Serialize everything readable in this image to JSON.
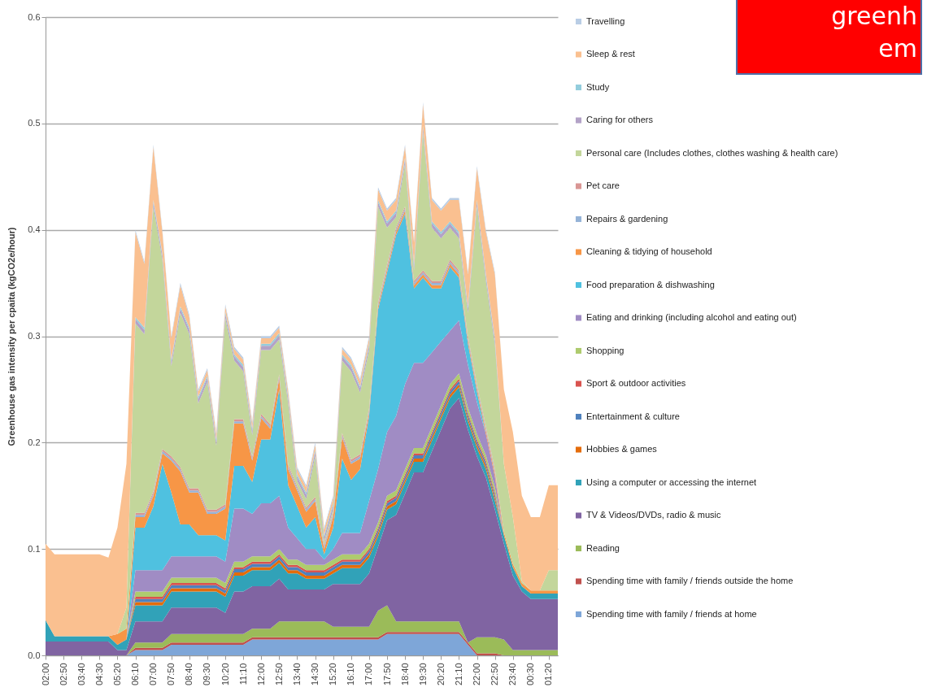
{
  "chart_data": {
    "type": "area",
    "stacked": true,
    "ylabel": "Greenhouse gas intensity per cpaita (kgCO2e/hour)",
    "annotations": [
      "greenh",
      "em"
    ],
    "categories": [
      "02:00",
      null,
      "02:50",
      null,
      "03:40",
      null,
      "04:30",
      null,
      "05:20",
      null,
      "06:10",
      null,
      "07:00",
      null,
      "07:50",
      null,
      "08:40",
      null,
      "09:30",
      null,
      "10:20",
      null,
      "11:10",
      null,
      "12:00",
      null,
      "12:50",
      null,
      "13:40",
      null,
      "14:30",
      null,
      "15:20",
      null,
      "16:10",
      null,
      "17:00",
      null,
      "17:50",
      null,
      "18:40",
      null,
      "19:30",
      null,
      "20:20",
      null,
      "21:10",
      null,
      "22:00",
      null,
      "22:50",
      null,
      "23:40",
      null,
      "00:30",
      null,
      "01:20",
      null
    ],
    "ylim": [
      0,
      0.6
    ],
    "yticks": [
      {
        "value": 0,
        "label": "0.0"
      },
      0.1,
      0.2,
      0.3,
      0.4,
      0.5,
      0.6
    ],
    "grid": "y",
    "legend": "right",
    "series": [
      {
        "name": "Spending time with family / friends at home",
        "color": "#7ea6d8",
        "values": [
          0,
          0,
          0,
          0,
          0,
          0,
          0,
          0,
          0,
          0,
          0.005,
          0.005,
          0.005,
          0.005,
          0.01,
          0.01,
          0.01,
          0.01,
          0.01,
          0.01,
          0.01,
          0.01,
          0.01,
          0.015,
          0.015,
          0.015,
          0.015,
          0.015,
          0.015,
          0.015,
          0.015,
          0.015,
          0.015,
          0.015,
          0.015,
          0.015,
          0.015,
          0.015,
          0.02,
          0.02,
          0.02,
          0.02,
          0.02,
          0.02,
          0.02,
          0.02,
          0.02,
          0.01,
          0,
          0,
          0,
          0,
          0,
          0,
          0,
          0,
          0,
          0
        ]
      },
      {
        "name": "Spending time with family / friends outside the home",
        "color": "#c0504d",
        "values": [
          0,
          0,
          0,
          0,
          0,
          0,
          0,
          0,
          0,
          0,
          0.002,
          0.002,
          0.002,
          0.002,
          0.002,
          0.002,
          0.002,
          0.002,
          0.002,
          0.002,
          0.002,
          0.002,
          0.002,
          0.002,
          0.002,
          0.002,
          0.002,
          0.002,
          0.002,
          0.002,
          0.002,
          0.002,
          0.002,
          0.002,
          0.002,
          0.002,
          0.002,
          0.002,
          0.002,
          0.002,
          0.002,
          0.002,
          0.002,
          0.002,
          0.002,
          0.002,
          0.002,
          0.002,
          0.002,
          0.002,
          0.002,
          0,
          0,
          0,
          0,
          0,
          0,
          0
        ]
      },
      {
        "name": "Reading",
        "color": "#9bbb59",
        "values": [
          0,
          0,
          0,
          0,
          0,
          0,
          0,
          0,
          0,
          0,
          0.005,
          0.005,
          0.005,
          0.005,
          0.008,
          0.008,
          0.008,
          0.008,
          0.008,
          0.008,
          0.008,
          0.008,
          0.008,
          0.008,
          0.008,
          0.008,
          0.015,
          0.015,
          0.015,
          0.015,
          0.015,
          0.015,
          0.01,
          0.01,
          0.01,
          0.01,
          0.01,
          0.025,
          0.025,
          0.01,
          0.01,
          0.01,
          0.01,
          0.01,
          0.01,
          0.01,
          0.01,
          0,
          0.015,
          0.015,
          0.015,
          0.015,
          0.005,
          0.005,
          0.005,
          0.005,
          0.005,
          0.005
        ]
      },
      {
        "name": "TV & Videos/DVDs, radio & music",
        "color": "#8064a2",
        "values": [
          0.013,
          0.013,
          0.013,
          0.013,
          0.013,
          0.013,
          0.013,
          0.013,
          0.005,
          0.005,
          0.02,
          0.02,
          0.02,
          0.02,
          0.025,
          0.025,
          0.025,
          0.025,
          0.025,
          0.025,
          0.02,
          0.04,
          0.04,
          0.04,
          0.04,
          0.04,
          0.04,
          0.03,
          0.03,
          0.03,
          0.03,
          0.03,
          0.04,
          0.04,
          0.04,
          0.04,
          0.05,
          0.06,
          0.08,
          0.1,
          0.12,
          0.14,
          0.14,
          0.16,
          0.18,
          0.2,
          0.21,
          0.2,
          0.17,
          0.15,
          0.12,
          0.09,
          0.07,
          0.055,
          0.048,
          0.048,
          0.048,
          0.048
        ]
      },
      {
        "name": "Using a computer or accessing the internet",
        "color": "#31a2b8",
        "values": [
          0.02,
          0.005,
          0.005,
          0.005,
          0.005,
          0.005,
          0.005,
          0.005,
          0.005,
          0.01,
          0.015,
          0.015,
          0.015,
          0.015,
          0.015,
          0.015,
          0.015,
          0.015,
          0.015,
          0.015,
          0.015,
          0.015,
          0.015,
          0.015,
          0.015,
          0.015,
          0.015,
          0.015,
          0.015,
          0.01,
          0.01,
          0.01,
          0.01,
          0.015,
          0.015,
          0.015,
          0.015,
          0.01,
          0.01,
          0.01,
          0.01,
          0.01,
          0.01,
          0.01,
          0.01,
          0.01,
          0.01,
          0.008,
          0.008,
          0.008,
          0.008,
          0.008,
          0.008,
          0.005,
          0.005,
          0.005,
          0.005,
          0.005
        ]
      },
      {
        "name": "Hobbies & games",
        "color": "#e46c0a",
        "values": [
          0,
          0,
          0,
          0,
          0,
          0,
          0,
          0,
          0,
          0,
          0.003,
          0.003,
          0.003,
          0.003,
          0.003,
          0.003,
          0.003,
          0.003,
          0.003,
          0.003,
          0.003,
          0.003,
          0.003,
          0.003,
          0.003,
          0.003,
          0.003,
          0.003,
          0.003,
          0.003,
          0.003,
          0.003,
          0.003,
          0.003,
          0.003,
          0.003,
          0.003,
          0.003,
          0.003,
          0.003,
          0.003,
          0.003,
          0.003,
          0.003,
          0.003,
          0.003,
          0.003,
          0.003,
          0.003,
          0.003,
          0.003,
          0,
          0,
          0,
          0,
          0,
          0,
          0
        ]
      },
      {
        "name": "Entertainment & culture",
        "color": "#4f81bd",
        "values": [
          0,
          0,
          0,
          0,
          0,
          0,
          0,
          0,
          0,
          0,
          0.003,
          0.003,
          0.003,
          0.003,
          0.003,
          0.003,
          0.003,
          0.003,
          0.003,
          0.003,
          0.003,
          0.003,
          0.003,
          0.003,
          0.003,
          0.003,
          0.003,
          0.003,
          0.003,
          0.003,
          0.003,
          0.003,
          0.003,
          0.003,
          0.003,
          0.003,
          0.003,
          0.003,
          0.003,
          0.003,
          0.003,
          0.003,
          0.003,
          0.003,
          0.003,
          0.003,
          0.003,
          0.003,
          0.003,
          0.003,
          0.003,
          0,
          0,
          0,
          0,
          0,
          0,
          0
        ]
      },
      {
        "name": "Sport & outdoor activities",
        "color": "#d9534f",
        "values": [
          0,
          0,
          0,
          0,
          0,
          0,
          0,
          0,
          0,
          0,
          0.002,
          0.002,
          0.002,
          0.002,
          0.002,
          0.002,
          0.002,
          0.002,
          0.002,
          0.002,
          0.002,
          0.002,
          0.002,
          0.002,
          0.002,
          0.002,
          0.002,
          0.002,
          0.002,
          0.002,
          0.002,
          0.002,
          0.002,
          0.002,
          0.002,
          0.002,
          0.002,
          0.002,
          0.002,
          0.002,
          0.002,
          0.002,
          0.002,
          0.002,
          0.002,
          0.002,
          0.002,
          0.002,
          0.002,
          0.002,
          0.002,
          0,
          0,
          0,
          0,
          0,
          0,
          0
        ]
      },
      {
        "name": "Shopping",
        "color": "#aecb6e",
        "values": [
          0,
          0,
          0,
          0,
          0,
          0,
          0,
          0,
          0,
          0,
          0.005,
          0.005,
          0.005,
          0.005,
          0.005,
          0.005,
          0.005,
          0.005,
          0.005,
          0.005,
          0.005,
          0.005,
          0.005,
          0.005,
          0.005,
          0.005,
          0.005,
          0.005,
          0.005,
          0.005,
          0.005,
          0.005,
          0.005,
          0.005,
          0.005,
          0.005,
          0.005,
          0.005,
          0.005,
          0.005,
          0.005,
          0.005,
          0.005,
          0.005,
          0.005,
          0.005,
          0.005,
          0.005,
          0.005,
          0.005,
          0.005,
          0,
          0,
          0,
          0,
          0,
          0,
          0
        ]
      },
      {
        "name": "Eating and drinking (including alcohol and eating out)",
        "color": "#a08cc4",
        "values": [
          0,
          0,
          0,
          0,
          0,
          0,
          0,
          0,
          0,
          0,
          0.02,
          0.02,
          0.02,
          0.02,
          0.02,
          0.02,
          0.02,
          0.02,
          0.02,
          0.02,
          0.02,
          0.05,
          0.05,
          0.04,
          0.05,
          0.05,
          0.05,
          0.03,
          0.02,
          0.015,
          0.015,
          0.005,
          0.01,
          0.02,
          0.02,
          0.02,
          0.04,
          0.05,
          0.06,
          0.07,
          0.08,
          0.08,
          0.08,
          0.07,
          0.06,
          0.05,
          0.05,
          0.04,
          0.03,
          0.02,
          0.01,
          0,
          0,
          0,
          0,
          0,
          0,
          0
        ]
      },
      {
        "name": "Food preparation & dishwashing",
        "color": "#4fc1e0",
        "values": [
          0,
          0,
          0,
          0,
          0,
          0,
          0,
          0,
          0,
          0,
          0.04,
          0.04,
          0.06,
          0.1,
          0.06,
          0.03,
          0.03,
          0.02,
          0.02,
          0.02,
          0.02,
          0.04,
          0.04,
          0.03,
          0.06,
          0.06,
          0.1,
          0.04,
          0.03,
          0.02,
          0.03,
          0.005,
          0.02,
          0.07,
          0.05,
          0.06,
          0.08,
          0.15,
          0.15,
          0.17,
          0.16,
          0.07,
          0.08,
          0.06,
          0.05,
          0.06,
          0.04,
          0.02,
          0.01,
          0,
          0,
          0,
          0,
          0,
          0,
          0,
          0,
          0
        ]
      },
      {
        "name": "Cleaning & tidying of household",
        "color": "#f79646",
        "values": [
          0,
          0,
          0,
          0,
          0,
          0,
          0,
          0,
          0.01,
          0.01,
          0.01,
          0.01,
          0.01,
          0.01,
          0.03,
          0.05,
          0.03,
          0.04,
          0.02,
          0.02,
          0.03,
          0.04,
          0.04,
          0.02,
          0.02,
          0.01,
          0.01,
          0.015,
          0.015,
          0.015,
          0.015,
          0.005,
          0.01,
          0.02,
          0.015,
          0.01,
          0.003,
          0.003,
          0.003,
          0.003,
          0.003,
          0.003,
          0.003,
          0.003,
          0.003,
          0.003,
          0.003,
          0.003,
          0.003,
          0.003,
          0.003,
          0.003,
          0.003,
          0.003,
          0.003,
          0.003,
          0.003,
          0.003
        ]
      },
      {
        "name": "Repairs & gardening",
        "color": "#95b3d7",
        "values": [
          0,
          0,
          0,
          0,
          0,
          0,
          0,
          0,
          0,
          0,
          0.002,
          0.002,
          0.002,
          0.002,
          0.002,
          0.002,
          0.002,
          0.002,
          0.002,
          0.002,
          0.002,
          0.002,
          0.002,
          0.002,
          0.002,
          0.002,
          0.002,
          0.002,
          0.002,
          0.002,
          0.002,
          0.002,
          0.002,
          0.002,
          0.002,
          0.002,
          0.002,
          0.002,
          0.002,
          0.002,
          0.002,
          0.002,
          0.002,
          0.002,
          0.002,
          0.002,
          0.002,
          0.002,
          0.002,
          0.002,
          0.002,
          0,
          0,
          0,
          0,
          0,
          0,
          0
        ]
      },
      {
        "name": "Pet care",
        "color": "#d99694",
        "values": [
          0,
          0,
          0,
          0,
          0,
          0,
          0,
          0,
          0,
          0,
          0.002,
          0.002,
          0.002,
          0.002,
          0.002,
          0.002,
          0.002,
          0.002,
          0.002,
          0.002,
          0.002,
          0.002,
          0.002,
          0.002,
          0.002,
          0.002,
          0.002,
          0.002,
          0.002,
          0.002,
          0.002,
          0.002,
          0.002,
          0.002,
          0.002,
          0.002,
          0.002,
          0.002,
          0.002,
          0.002,
          0.002,
          0.002,
          0.002,
          0.002,
          0.002,
          0.002,
          0.002,
          0.002,
          0.002,
          0.002,
          0.002,
          0,
          0,
          0,
          0,
          0,
          0,
          0
        ]
      },
      {
        "name": "Personal care (Includes clothes, clothes washing & health care)",
        "color": "#c3d69b",
        "values": [
          0,
          0,
          0,
          0,
          0,
          0,
          0,
          0,
          0,
          0.02,
          0.178,
          0.168,
          0.268,
          0.178,
          0.085,
          0.145,
          0.145,
          0.08,
          0.12,
          0.06,
          0.175,
          0.055,
          0.045,
          0.02,
          0.06,
          0.07,
          0.033,
          0.058,
          0.005,
          0.008,
          0.038,
          0.003,
          0.003,
          0.068,
          0.083,
          0.058,
          0.055,
          0.09,
          0.035,
          0.01,
          0.04,
          0.01,
          0.13,
          0.05,
          0.04,
          0.03,
          0.03,
          0.022,
          0.167,
          0.137,
          0.117,
          0.064,
          0.044,
          0.002,
          0,
          0,
          0.019,
          0.019
        ]
      },
      {
        "name": "Caring for others",
        "color": "#b3a2c7",
        "values": [
          0,
          0,
          0,
          0,
          0,
          0,
          0,
          0,
          0,
          0,
          0.004,
          0.004,
          0.004,
          0.004,
          0.004,
          0.004,
          0.004,
          0.004,
          0.004,
          0.004,
          0.004,
          0.004,
          0.004,
          0.004,
          0.004,
          0.004,
          0.004,
          0.004,
          0.004,
          0.004,
          0.004,
          0.004,
          0.004,
          0.004,
          0.004,
          0.004,
          0.004,
          0.004,
          0.004,
          0.004,
          0.004,
          0.004,
          0.004,
          0.004,
          0.004,
          0.004,
          0.004,
          0.004,
          0.004,
          0.004,
          0.004,
          0,
          0,
          0,
          0,
          0,
          0,
          0
        ]
      },
      {
        "name": "Study",
        "color": "#93cddd",
        "values": [
          0,
          0,
          0,
          0,
          0,
          0,
          0,
          0,
          0,
          0,
          0.002,
          0.002,
          0.002,
          0.002,
          0.002,
          0.002,
          0.002,
          0.002,
          0.002,
          0.002,
          0.002,
          0.002,
          0.002,
          0.002,
          0.002,
          0.002,
          0.002,
          0.002,
          0.002,
          0.002,
          0.002,
          0.002,
          0.002,
          0.002,
          0.002,
          0.002,
          0.002,
          0.002,
          0.002,
          0.002,
          0.002,
          0.002,
          0.002,
          0.002,
          0.002,
          0.002,
          0.002,
          0.002,
          0.002,
          0.002,
          0.002,
          0,
          0,
          0,
          0,
          0,
          0,
          0
        ]
      },
      {
        "name": "Sleep & rest",
        "color": "#fac090",
        "values": [
          0.072,
          0.077,
          0.077,
          0.077,
          0.077,
          0.077,
          0.077,
          0.074,
          0.1,
          0.135,
          0.08,
          0.06,
          0.05,
          0.02,
          0.02,
          0.02,
          0.01,
          0.005,
          0.005,
          0.005,
          0.005,
          0.005,
          0.005,
          0.005,
          0.005,
          0.005,
          0.005,
          0.005,
          0.005,
          0.005,
          0.005,
          0.005,
          0.005,
          0.005,
          0.005,
          0.005,
          0.005,
          0.01,
          0.01,
          0.01,
          0.01,
          0.02,
          0.02,
          0.02,
          0.02,
          0.02,
          0.03,
          0.03,
          0.03,
          0.04,
          0.06,
          0.07,
          0.08,
          0.08,
          0.069,
          0.069,
          0.08,
          0.08
        ]
      },
      {
        "name": "Travelling",
        "color": "#b9cde5",
        "values": [
          0,
          0,
          0,
          0,
          0,
          0,
          0,
          0,
          0,
          0,
          0.002,
          0.002,
          0.002,
          0.002,
          0.002,
          0.002,
          0.002,
          0.002,
          0.002,
          0.002,
          0.002,
          0.002,
          0.002,
          0.002,
          0.002,
          0.002,
          0.002,
          0.002,
          0.002,
          0.002,
          0.002,
          0.002,
          0.002,
          0.002,
          0.002,
          0.002,
          0.002,
          0.002,
          0.002,
          0.002,
          0.002,
          0.002,
          0.002,
          0.002,
          0.002,
          0.002,
          0.002,
          0.002,
          0.002,
          0.002,
          0.002,
          0,
          0,
          0,
          0,
          0,
          0,
          0
        ]
      }
    ]
  }
}
